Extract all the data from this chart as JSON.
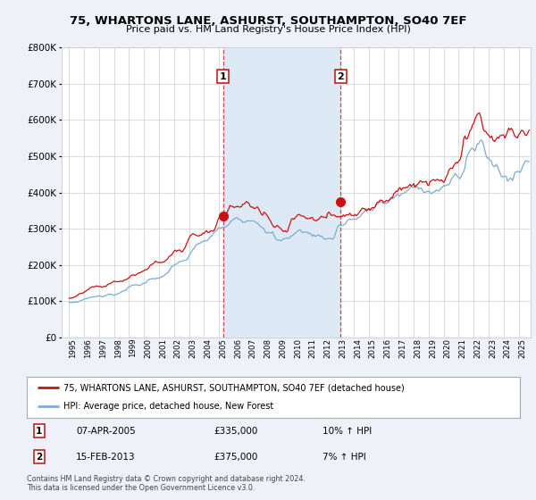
{
  "title": "75, WHARTONS LANE, ASHURST, SOUTHAMPTON, SO40 7EF",
  "subtitle": "Price paid vs. HM Land Registry's House Price Index (HPI)",
  "legend_line1": "75, WHARTONS LANE, ASHURST, SOUTHAMPTON, SO40 7EF (detached house)",
  "legend_line2": "HPI: Average price, detached house, New Forest",
  "event1_date": "07-APR-2005",
  "event1_price": 335000,
  "event1_label": "10% ↑ HPI",
  "event1_x": 2005.27,
  "event1_y": 335000,
  "event2_date": "15-FEB-2013",
  "event2_price": 375000,
  "event2_label": "7% ↑ HPI",
  "event2_x": 2013.12,
  "event2_y": 375000,
  "footnote": "Contains HM Land Registry data © Crown copyright and database right 2024.\nThis data is licensed under the Open Government Licence v3.0.",
  "bg_color": "#eef2f8",
  "plot_bg": "#ffffff",
  "red_color": "#cc1111",
  "blue_color": "#7aadd4",
  "shade_color": "#ddeaf6",
  "grid_color": "#cccccc",
  "ylim": [
    0,
    800000
  ],
  "yticks": [
    0,
    100000,
    200000,
    300000,
    400000,
    500000,
    600000,
    700000,
    800000
  ],
  "xlim_start": 1994.5,
  "xlim_end": 2025.8,
  "years": [
    1995,
    1996,
    1997,
    1998,
    1999,
    2000,
    2001,
    2002,
    2003,
    2004,
    2005,
    2006,
    2007,
    2008,
    2009,
    2010,
    2011,
    2012,
    2013,
    2014,
    2015,
    2016,
    2017,
    2018,
    2019,
    2020,
    2021,
    2022,
    2023,
    2024,
    2025
  ]
}
